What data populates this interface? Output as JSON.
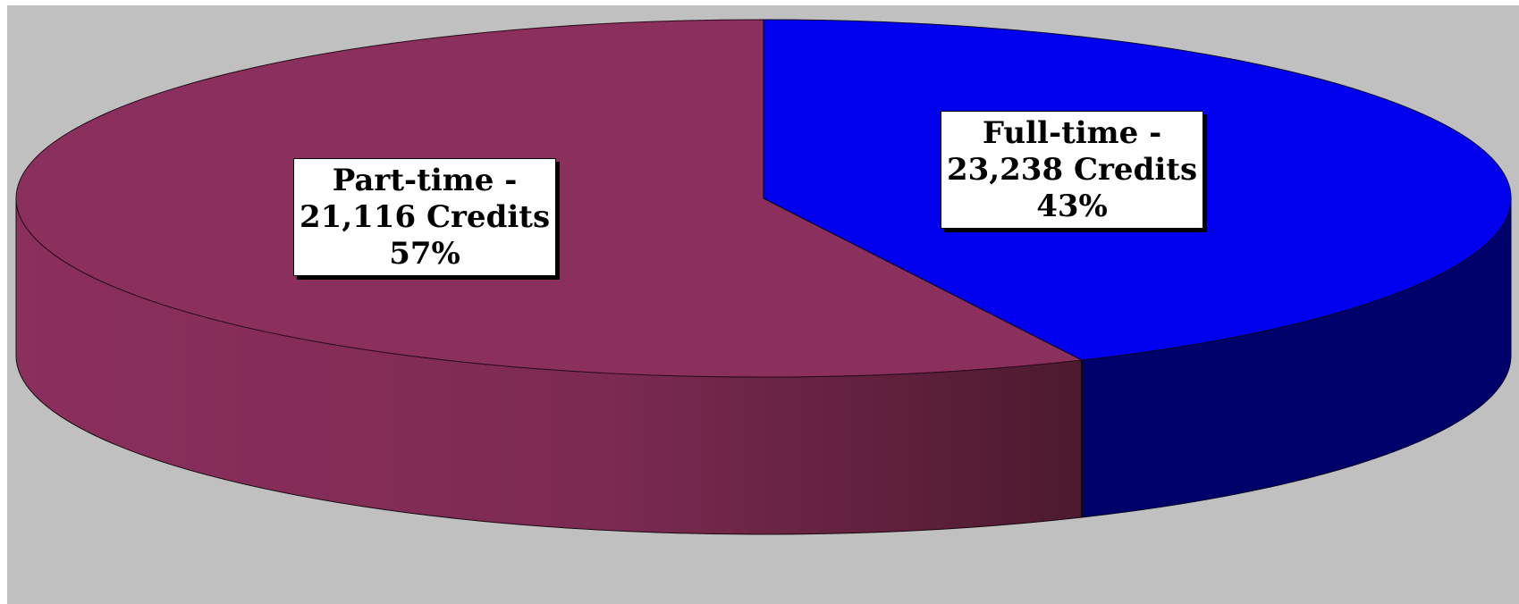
{
  "colors": {
    "background": "#c0c0c0",
    "part_time_top": "#8b2f5c",
    "full_time_top": "#0000ee",
    "full_time_side": "#00006a"
  },
  "chart_data": {
    "type": "pie",
    "style": "3d",
    "slices": [
      {
        "label": "Part-time",
        "credits": 21116,
        "value_text": "21,116 Credits",
        "percent": 57,
        "percent_text": "57%",
        "line1": "Part-time -",
        "color": "#8b2f5c"
      },
      {
        "label": "Full-time",
        "credits": 23238,
        "value_text": "23,238 Credits",
        "percent": 43,
        "percent_text": "43%",
        "line1": "Full-time -",
        "color": "#0000ee"
      }
    ],
    "legend": "none",
    "data_labels": "boxed"
  }
}
